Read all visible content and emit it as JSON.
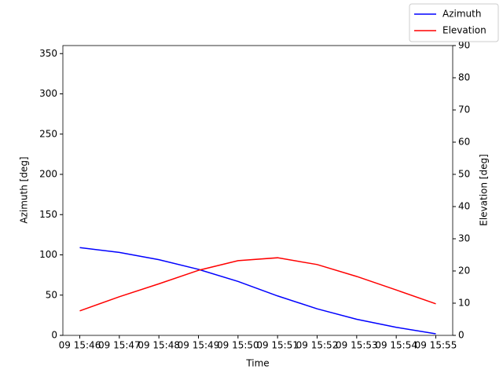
{
  "chart_data": {
    "type": "line",
    "x": [
      "09 15:46",
      "09 15:47",
      "09 15:48",
      "09 15:49",
      "09 15:50",
      "09 15:51",
      "09 15:52",
      "09 15:53",
      "09 15:54",
      "09 15:55"
    ],
    "series": [
      {
        "name": "Azimuth",
        "color": "#0000ff",
        "values": [
          109,
          103,
          94,
          82,
          67,
          49,
          33,
          20,
          10,
          2
        ]
      },
      {
        "name": "Elevation",
        "color": "#ff0000",
        "axis": "y2",
        "values": [
          7.6,
          12,
          16,
          20.2,
          23.2,
          24.1,
          22,
          18.3,
          14.1,
          9.8
        ]
      }
    ],
    "xlabel": "Time",
    "ylabel": "Azimuth [deg]",
    "y2label": "Elevation [deg]",
    "ylim": [
      0,
      360
    ],
    "yticks": [
      0,
      50,
      100,
      150,
      200,
      250,
      300,
      350
    ],
    "y2lim": [
      0,
      90
    ],
    "y2ticks": [
      0,
      10,
      20,
      30,
      40,
      50,
      60,
      70,
      80,
      90
    ],
    "legend": "upper right"
  }
}
